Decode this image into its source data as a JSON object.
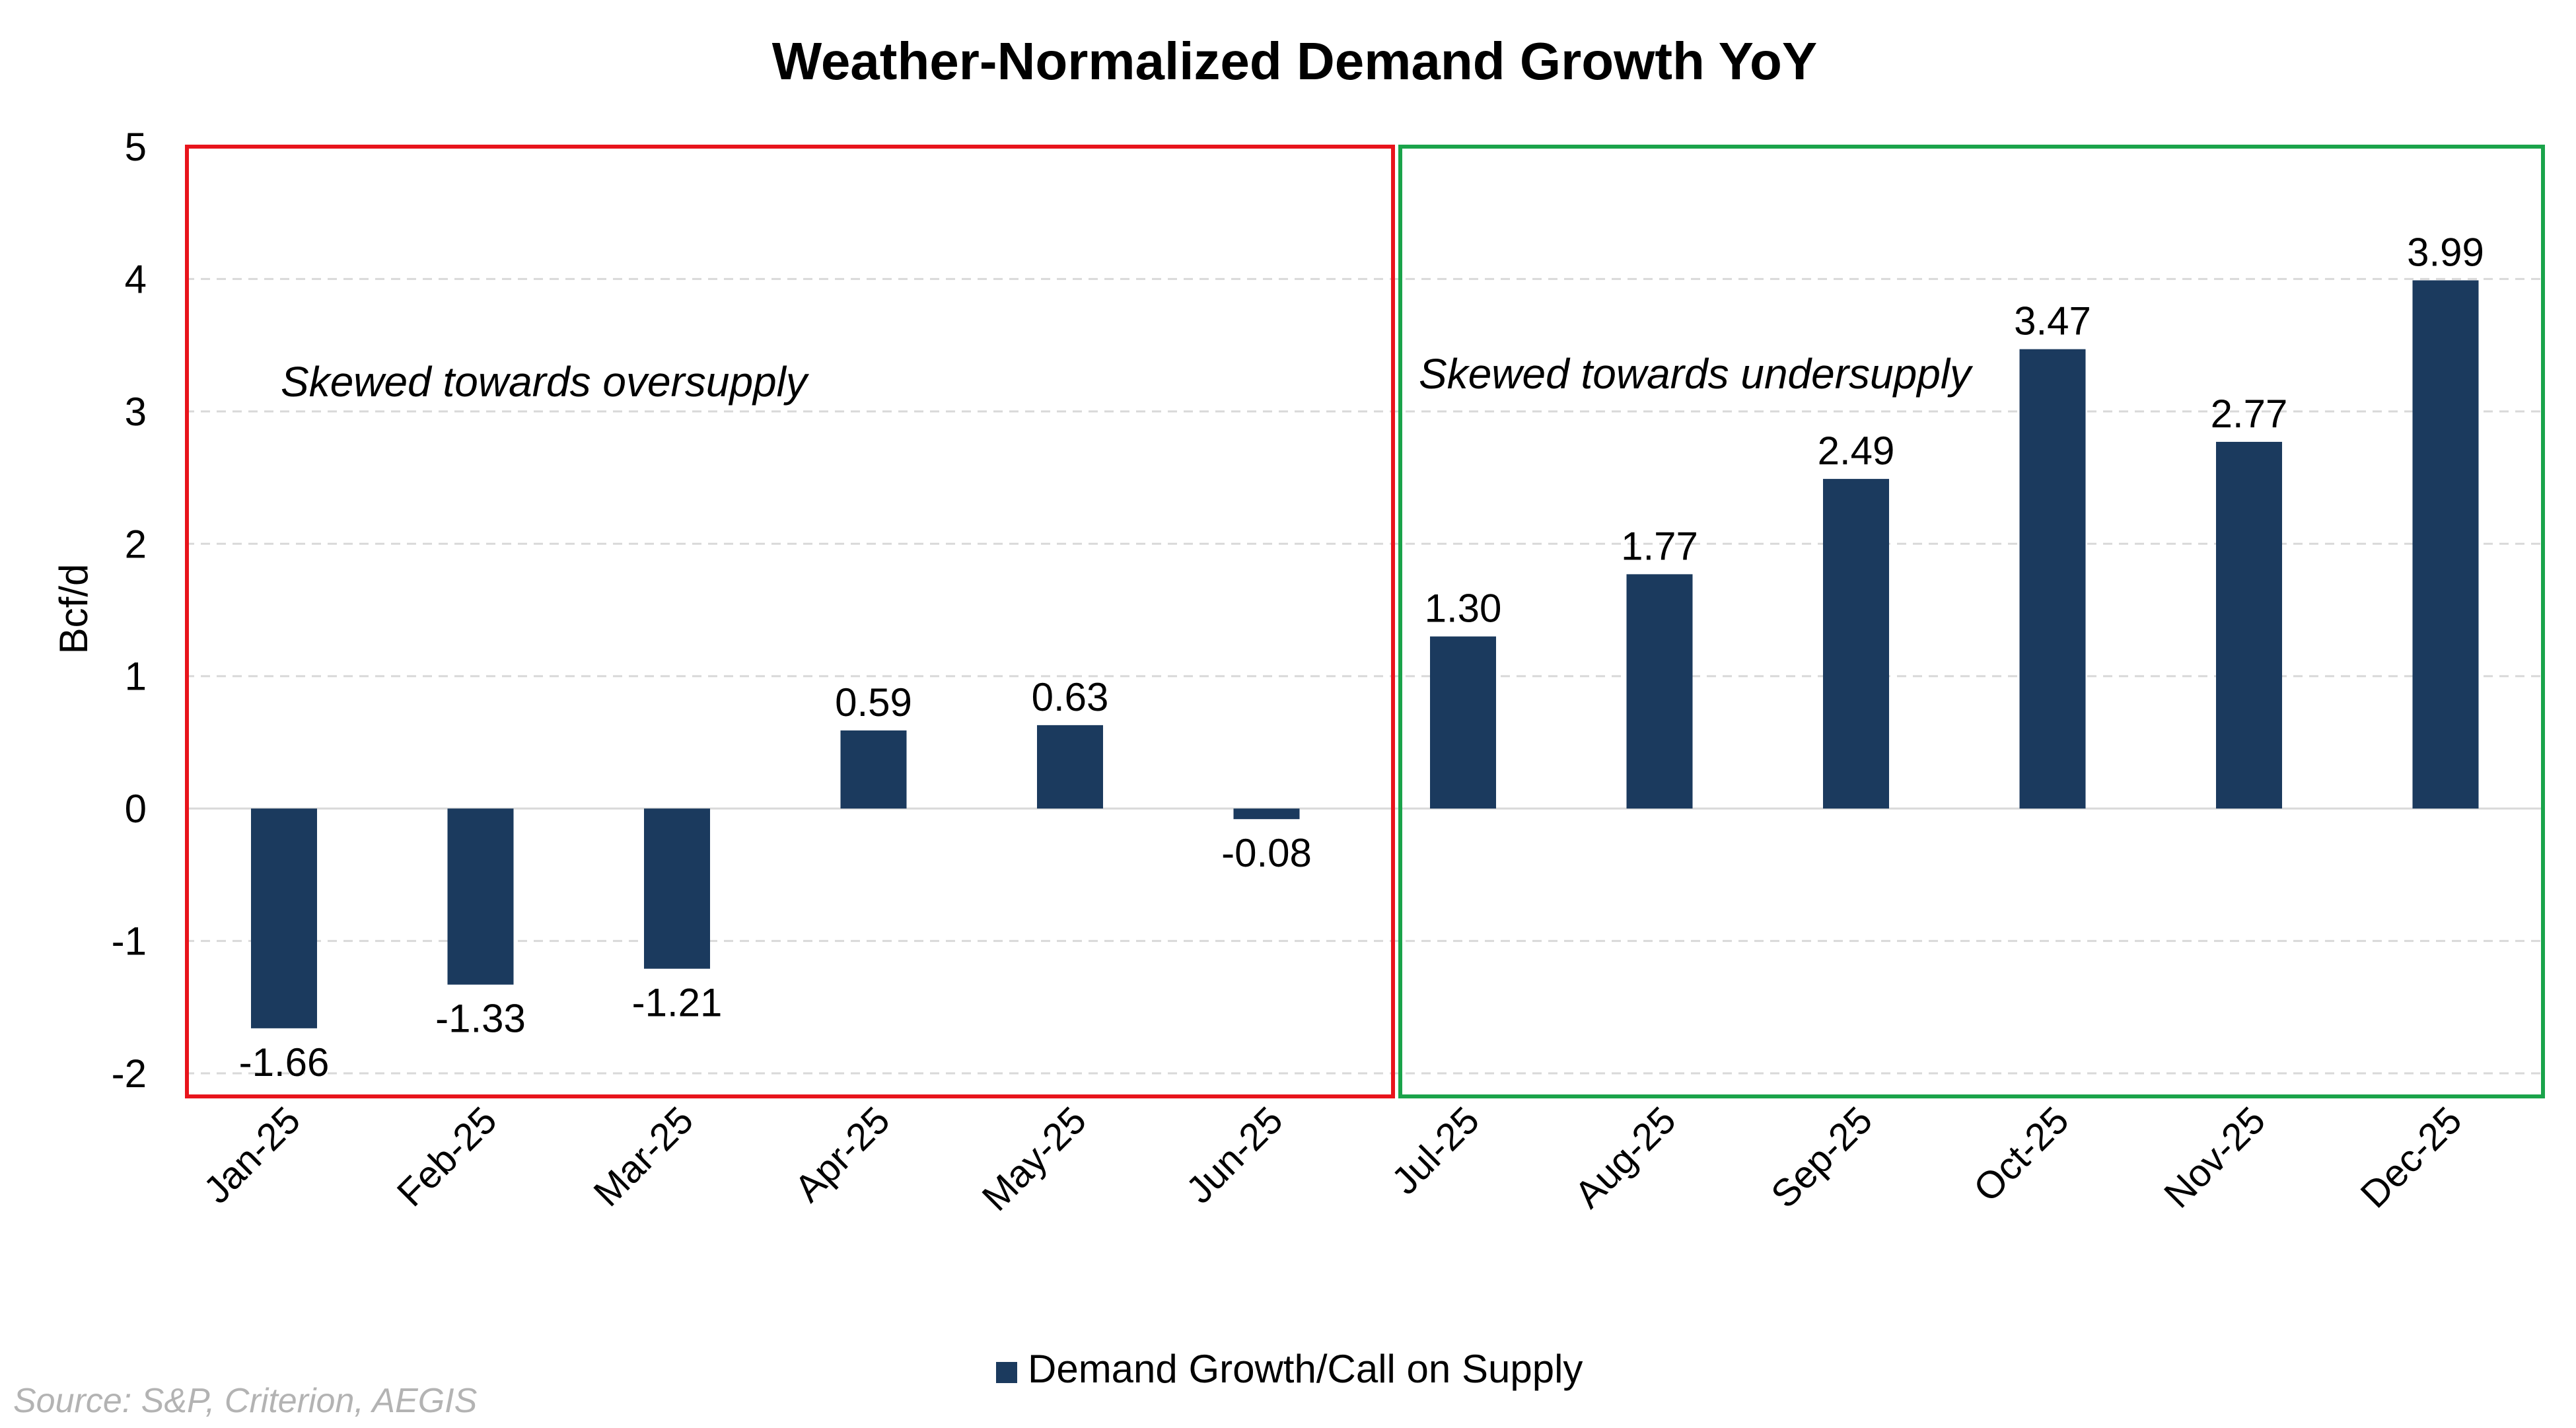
{
  "chart_data": {
    "type": "bar",
    "title": "Weather-Normalized Demand Growth YoY",
    "xlabel": "",
    "ylabel": "Bcf/d",
    "ylim": [
      -2,
      5
    ],
    "yticks": [
      -2,
      -1,
      0,
      1,
      2,
      3,
      4,
      5
    ],
    "categories": [
      "Jan-25",
      "Feb-25",
      "Mar-25",
      "Apr-25",
      "May-25",
      "Jun-25",
      "Jul-25",
      "Aug-25",
      "Sep-25",
      "Oct-25",
      "Nov-25",
      "Dec-25"
    ],
    "series": [
      {
        "name": "Demand Growth/Call on Supply",
        "values": [
          -1.66,
          -1.33,
          -1.21,
          0.59,
          0.63,
          -0.08,
          1.3,
          1.77,
          2.49,
          3.47,
          2.77,
          3.99
        ],
        "labels": [
          "-1.66",
          "-1.33",
          "-1.21",
          "0.59",
          "0.63",
          "-0.08",
          "1.30",
          "1.77",
          "2.49",
          "3.47",
          "2.77",
          "3.99"
        ],
        "color": "#1b3a5e"
      }
    ],
    "grid": true,
    "legend_position": "bottom",
    "annotations": [
      {
        "text": "Skewed towards oversupply",
        "spans": [
          "Jan-25",
          "Jun-25"
        ],
        "box_color": "#e8141c"
      },
      {
        "text": "Skewed towards undersupply",
        "spans": [
          "Jul-25",
          "Dec-25"
        ],
        "box_color": "#1aa34a"
      }
    ]
  },
  "source": "Source: S&P, Criterion, AEGIS",
  "colors": {
    "bar": "#1b3a5e",
    "grid": "#d9d9d9",
    "oversupply_box": "#e8141c",
    "undersupply_box": "#1aa34a",
    "source_text": "#b3b3b3"
  }
}
